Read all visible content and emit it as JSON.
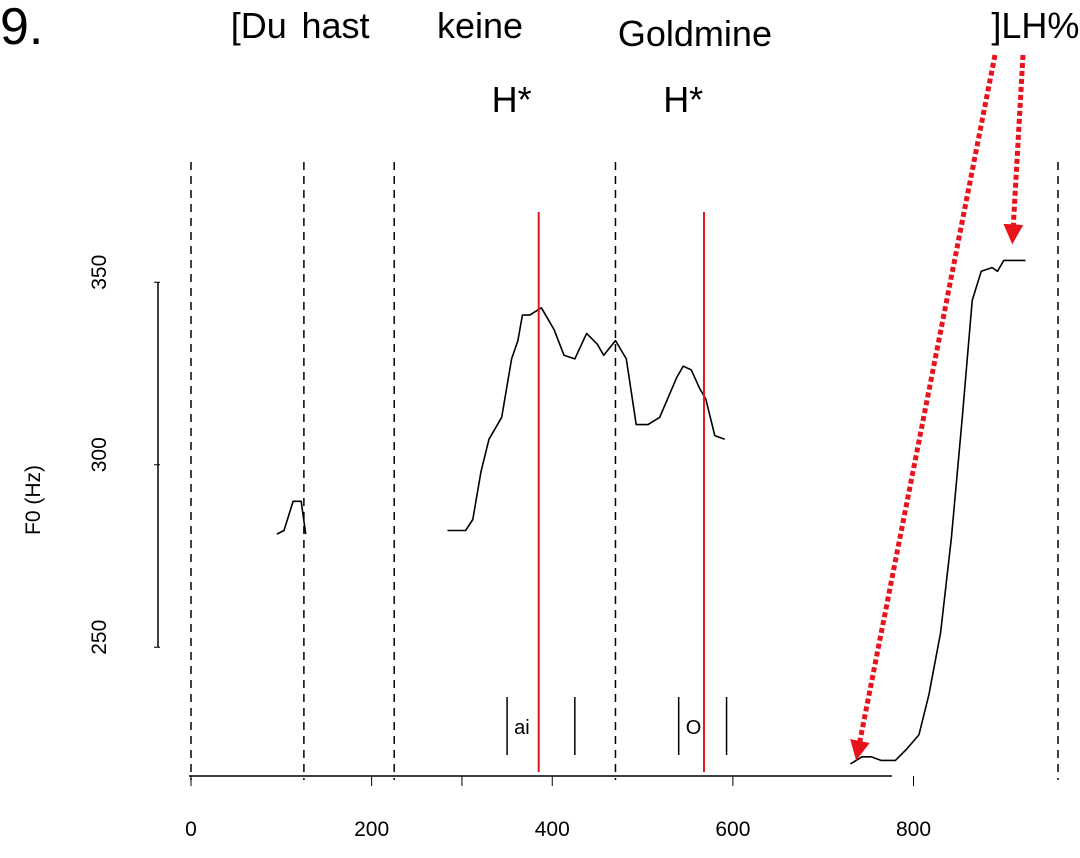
{
  "chart_data": {
    "type": "line",
    "example_number": "9.",
    "ylabel": "F0 (Hz)",
    "xlabel": "",
    "xlim": [
      0,
      960
    ],
    "ylim": [
      215,
      375
    ],
    "xticks": [
      0,
      200,
      400,
      600,
      800
    ],
    "xtick_labels": [
      "0",
      "200",
      "400",
      "600",
      "800"
    ],
    "yticks": [
      250,
      300,
      350
    ],
    "ytick_labels": [
      "250",
      "300",
      "350"
    ],
    "words": [
      {
        "text": "[Du",
        "x": 75
      },
      {
        "text": "hast",
        "x": 160
      },
      {
        "text": "keine",
        "x": 320
      },
      {
        "text": "Goldmine",
        "x": 558
      },
      {
        "text": "]LH%",
        "x": 935
      }
    ],
    "tones": [
      {
        "text": "H*",
        "x": 355
      },
      {
        "text": "H*",
        "x": 545
      }
    ],
    "word_boundaries": [
      0,
      125,
      225,
      470,
      960
    ],
    "accent_lines": [
      385,
      568
    ],
    "segments": [
      {
        "label": "ai",
        "start": 350,
        "end": 425
      },
      {
        "label": "O",
        "start": 540,
        "end": 593
      }
    ],
    "f0_contours": [
      [
        [
          95,
          281
        ],
        [
          103,
          282
        ],
        [
          113,
          290
        ],
        [
          122,
          290
        ],
        [
          127,
          281
        ]
      ],
      [
        [
          284,
          282
        ],
        [
          304,
          282
        ],
        [
          312,
          285
        ],
        [
          321,
          298
        ],
        [
          330,
          307
        ],
        [
          344,
          313
        ],
        [
          355,
          329
        ],
        [
          362,
          334
        ],
        [
          367,
          341
        ],
        [
          375,
          341
        ],
        [
          388,
          343
        ],
        [
          402,
          337
        ],
        [
          413,
          330
        ],
        [
          425,
          329
        ],
        [
          438,
          336
        ],
        [
          450,
          333
        ],
        [
          457,
          330
        ],
        [
          470,
          334
        ],
        [
          482,
          329
        ],
        [
          493,
          311
        ],
        [
          506,
          311
        ],
        [
          519,
          313
        ],
        [
          531,
          320
        ],
        [
          538,
          324
        ],
        [
          545,
          327
        ],
        [
          554,
          326
        ],
        [
          563,
          321
        ],
        [
          570,
          318
        ],
        [
          580,
          308
        ],
        [
          591,
          307
        ]
      ],
      [
        [
          730,
          218
        ],
        [
          743,
          220
        ],
        [
          753,
          220
        ],
        [
          764,
          219
        ],
        [
          780,
          219
        ],
        [
          792,
          222
        ],
        [
          806,
          226
        ],
        [
          817,
          237
        ],
        [
          830,
          254
        ],
        [
          842,
          280
        ],
        [
          854,
          313
        ],
        [
          865,
          345
        ],
        [
          875,
          353
        ],
        [
          887,
          354
        ],
        [
          893,
          353
        ],
        [
          900,
          356
        ],
        [
          912,
          356
        ],
        [
          924,
          356
        ]
      ]
    ],
    "colors": {
      "contour": "#000000",
      "accent": "#e8141c",
      "arrow": "#e8141c",
      "boundary": "#000000"
    }
  }
}
